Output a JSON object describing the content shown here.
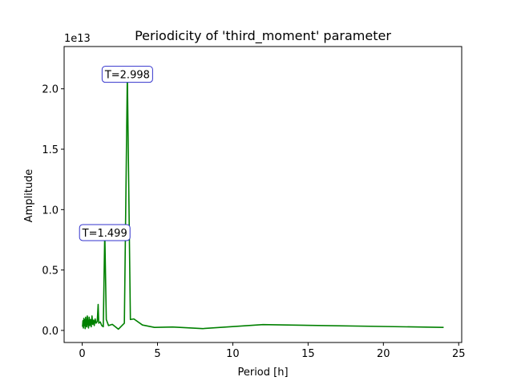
{
  "chart_data": {
    "type": "line",
    "title": "Periodicity of 'third_moment' parameter",
    "xlabel": "Period [h]",
    "ylabel": "Amplitude",
    "offset_text": "1e13",
    "xlim": [
      -1.2,
      25.2
    ],
    "ylim": [
      -1000000000000.0,
      23500000000000.0
    ],
    "x_ticks": [
      0,
      5,
      10,
      15,
      20,
      25
    ],
    "x_tick_labels": [
      "0",
      "5",
      "10",
      "15",
      "20",
      "25"
    ],
    "y_ticks": [
      0,
      5000000000000.0,
      10000000000000.0,
      15000000000000.0,
      20000000000000.0
    ],
    "y_tick_labels": [
      "0.0",
      "0.5",
      "1.0",
      "1.5",
      "2.0"
    ],
    "line_color": "#008000",
    "annotation_box_color": "#3333cc",
    "series": [
      {
        "x": [
          0.02,
          0.05,
          0.08,
          0.11,
          0.14,
          0.17,
          0.2,
          0.23,
          0.26,
          0.3,
          0.34,
          0.38,
          0.42,
          0.46,
          0.5,
          0.55,
          0.6,
          0.65,
          0.7,
          0.75,
          0.8,
          0.86,
          0.92,
          1.0,
          1.06,
          1.1,
          1.2,
          1.3,
          1.4,
          1.499,
          1.6,
          1.75,
          2.0,
          2.4,
          2.6,
          2.8,
          2.998,
          3.2,
          3.43,
          4.0,
          4.8,
          6.0,
          8.0,
          12.0,
          24.0
        ],
        "y": [
          300000000000.0,
          800000000000.0,
          200000000000.0,
          1000000000000.0,
          400000000000.0,
          900000000000.0,
          150000000000.0,
          1100000000000.0,
          500000000000.0,
          300000000000.0,
          1200000000000.0,
          600000000000.0,
          200000000000.0,
          1100000000000.0,
          400000000000.0,
          900000000000.0,
          300000000000.0,
          1200000000000.0,
          500000000000.0,
          850000000000.0,
          400000000000.0,
          950000000000.0,
          600000000000.0,
          750000000000.0,
          2150000000000.0,
          600000000000.0,
          700000000000.0,
          400000000000.0,
          300000000000.0,
          8100000000000.0,
          900000000000.0,
          400000000000.0,
          500000000000.0,
          100000000000.0,
          350000000000.0,
          600000000000.0,
          21200000000000.0,
          900000000000.0,
          950000000000.0,
          450000000000.0,
          250000000000.0,
          280000000000.0,
          150000000000.0,
          480000000000.0,
          250000000000.0
        ]
      }
    ],
    "annotations": [
      {
        "text": "T=2.998",
        "x": 2.998,
        "y": 21200000000000.0
      },
      {
        "text": "T=1.499",
        "x": 1.499,
        "y": 8100000000000.0
      }
    ]
  }
}
